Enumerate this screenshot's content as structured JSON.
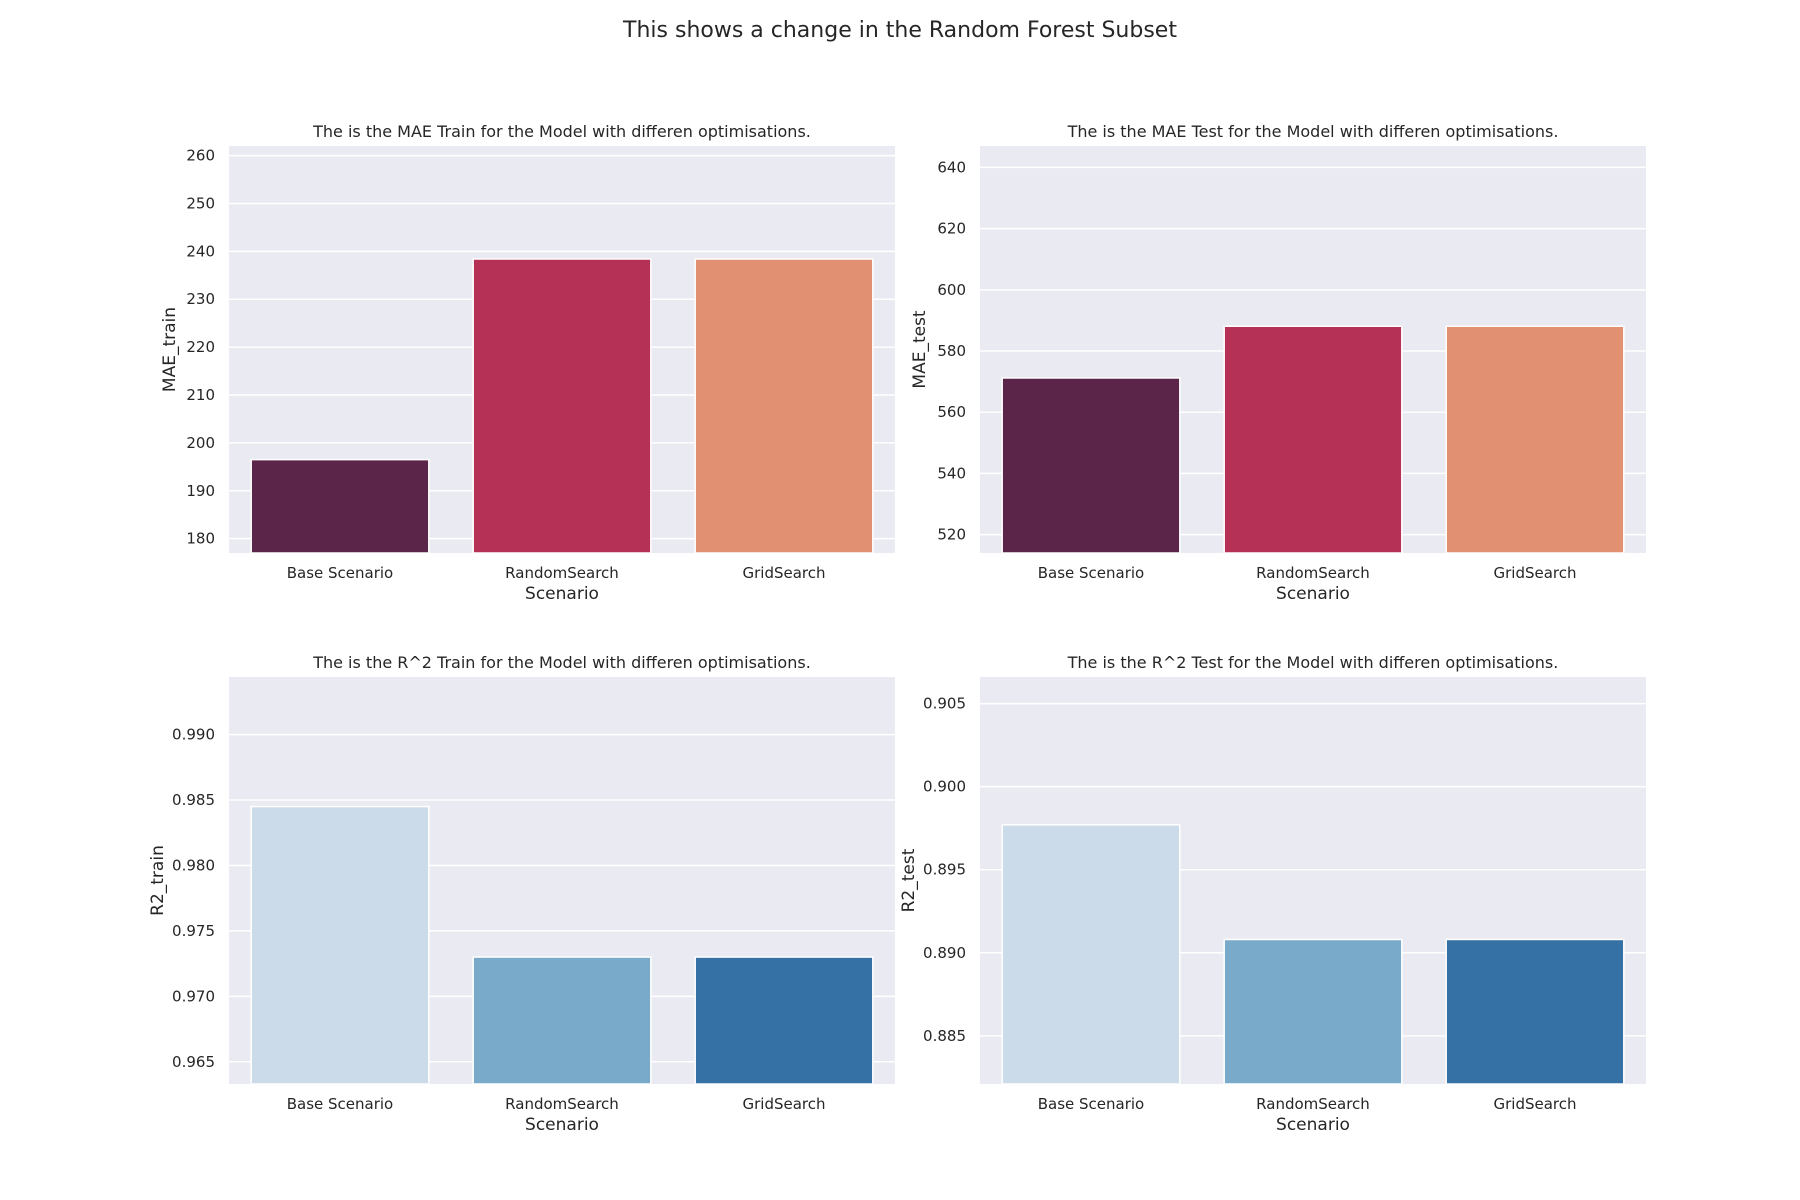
{
  "figure_title": "This shows a change in the Random Forest Subset",
  "chart_data": [
    {
      "type": "bar",
      "title": "The is the MAE Train for the Model with differen optimisations.",
      "xlabel": "Scenario",
      "ylabel": "MAE_train",
      "categories": [
        "Base Scenario",
        "RandomSearch",
        "GridSearch"
      ],
      "values": [
        196.5,
        238.4,
        238.4
      ],
      "ylim": [
        177,
        262
      ],
      "yticks": [
        180,
        190,
        200,
        210,
        220,
        230,
        240,
        250,
        260
      ],
      "tick_decimals": 0,
      "colors": [
        "#5b254a",
        "#b53156",
        "#e19072"
      ],
      "grid": true
    },
    {
      "type": "bar",
      "title": "The is the MAE Test for the Model with differen optimisations.",
      "xlabel": "Scenario",
      "ylabel": "MAE_test",
      "categories": [
        "Base Scenario",
        "RandomSearch",
        "GridSearch"
      ],
      "values": [
        571.2,
        588.1,
        588.1
      ],
      "ylim": [
        514,
        647
      ],
      "yticks": [
        520,
        540,
        560,
        580,
        600,
        620,
        640
      ],
      "tick_decimals": 0,
      "colors": [
        "#5b254a",
        "#b53156",
        "#e19072"
      ],
      "grid": true
    },
    {
      "type": "bar",
      "title": "The is the R^2 Train for the Model with differen optimisations.",
      "xlabel": "Scenario",
      "ylabel": "R2_train",
      "categories": [
        "Base Scenario",
        "RandomSearch",
        "GridSearch"
      ],
      "values": [
        0.9845,
        0.973,
        0.973
      ],
      "ylim": [
        0.9633,
        0.9944
      ],
      "yticks": [
        0.965,
        0.97,
        0.975,
        0.98,
        0.985,
        0.99
      ],
      "tick_decimals": 3,
      "colors": [
        "#cbdbea",
        "#7aaac9",
        "#3571a5"
      ],
      "grid": true
    },
    {
      "type": "bar",
      "title": "The is the R^2 Test for the Model with differen optimisations.",
      "xlabel": "Scenario",
      "ylabel": "R2_test",
      "categories": [
        "Base Scenario",
        "RandomSearch",
        "GridSearch"
      ],
      "values": [
        0.8977,
        0.8908,
        0.8908
      ],
      "ylim": [
        0.8821,
        0.9066
      ],
      "yticks": [
        0.885,
        0.89,
        0.895,
        0.9,
        0.905
      ],
      "tick_decimals": 3,
      "colors": [
        "#cbdbea",
        "#7aaac9",
        "#3571a5"
      ],
      "grid": true
    }
  ]
}
